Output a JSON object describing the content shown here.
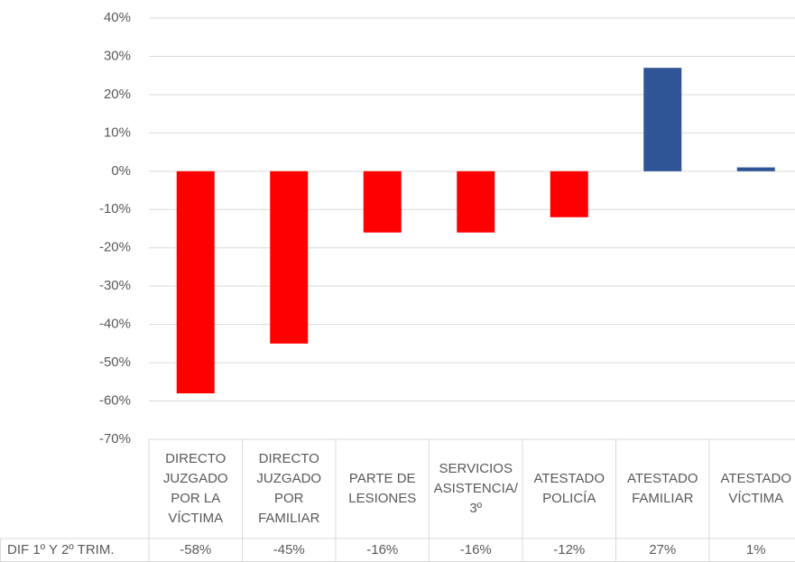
{
  "chart_data": {
    "type": "bar",
    "categories": [
      "DIRECTO JUZGADO POR LA VÍCTIMA",
      "DIRECTO JUZGADO POR FAMILIAR",
      "PARTE DE LESIONES",
      "SERVICIOS ASISTENCIA/3º",
      "ATESTADO POLICÍA",
      "ATESTADO FAMILIAR",
      "ATESTADO VÍCTIMA"
    ],
    "series": [
      {
        "name": "DIF 1º Y 2º TRIM.",
        "values": [
          -58,
          -45,
          -16,
          -16,
          -12,
          27,
          1
        ],
        "value_labels": [
          "-58%",
          "-45%",
          "-16%",
          "-16%",
          "-12%",
          "27%",
          "1%"
        ],
        "colors": [
          "#ff0000",
          "#ff0000",
          "#ff0000",
          "#ff0000",
          "#ff0000",
          "#2f5597",
          "#2f5597"
        ]
      }
    ],
    "ylim": [
      -70,
      40
    ],
    "yticks": [
      {
        "value": -70,
        "label": "-70%"
      },
      {
        "value": -60,
        "label": "-60%"
      },
      {
        "value": -50,
        "label": "-50%"
      },
      {
        "value": -40,
        "label": "-40%"
      },
      {
        "value": -30,
        "label": "-30%"
      },
      {
        "value": -20,
        "label": "-20%"
      },
      {
        "value": -10,
        "label": "-10%"
      },
      {
        "value": 0,
        "label": "0%"
      },
      {
        "value": 10,
        "label": "10%"
      },
      {
        "value": 20,
        "label": "20%"
      },
      {
        "value": 30,
        "label": "30%"
      },
      {
        "value": 40,
        "label": "40%"
      }
    ],
    "grid": true,
    "data_table": true
  }
}
